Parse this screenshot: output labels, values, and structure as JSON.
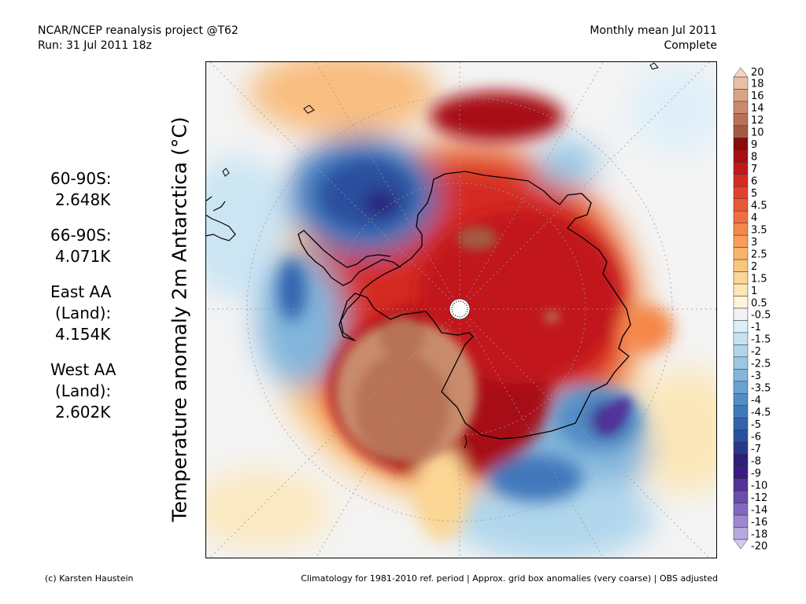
{
  "header": {
    "left_line1": "NCAR/NCEP reanalysis project @T62",
    "left_line2": "Run: 31 Jul 2011 18z",
    "right_line1": "Monthly mean Jul 2011",
    "right_line2": "Complete"
  },
  "map": {
    "ylabel": "Temperature anomaly 2m Antarctica (°C)",
    "projection": "south-polar-stereographic",
    "colors": {
      "ocean_background": "#f4f4f4",
      "coastline": "#000000",
      "grid": "#999999"
    }
  },
  "stats": [
    {
      "label_lines": [
        "60-90S:"
      ],
      "value": "2.648K"
    },
    {
      "label_lines": [
        "66-90S:"
      ],
      "value": "4.071K"
    },
    {
      "label_lines": [
        "East AA",
        "(Land):"
      ],
      "value": "4.154K"
    },
    {
      "label_lines": [
        "West AA",
        "(Land):"
      ],
      "value": "2.602K"
    }
  ],
  "colorbar": {
    "levels": [
      {
        "label": "20",
        "color": "#f5d6c4"
      },
      {
        "label": "18",
        "color": "#e8bfa6"
      },
      {
        "label": "16",
        "color": "#d9a486"
      },
      {
        "label": "14",
        "color": "#c98b6c"
      },
      {
        "label": "12",
        "color": "#b87256"
      },
      {
        "label": "10",
        "color": "#a45a42"
      },
      {
        "label": "9",
        "color": "#8b0a0a"
      },
      {
        "label": "8",
        "color": "#a70f12"
      },
      {
        "label": "7",
        "color": "#c1181b"
      },
      {
        "label": "6",
        "color": "#d52a22"
      },
      {
        "label": "5",
        "color": "#e2402c"
      },
      {
        "label": "4.5",
        "color": "#ea5834"
      },
      {
        "label": "4",
        "color": "#f06e3e"
      },
      {
        "label": "3.5",
        "color": "#f5874a"
      },
      {
        "label": "3",
        "color": "#f89e5a"
      },
      {
        "label": "2.5",
        "color": "#f9b46b"
      },
      {
        "label": "2",
        "color": "#fac67e"
      },
      {
        "label": "1.5",
        "color": "#fbd694"
      },
      {
        "label": "1",
        "color": "#fce6b4"
      },
      {
        "label": "0.5",
        "color": "#fdf4dc"
      },
      {
        "label": "-0.5",
        "color": "#f2f2f2"
      },
      {
        "label": "-1",
        "color": "#dbeefa"
      },
      {
        "label": "-1.5",
        "color": "#c6e3f3"
      },
      {
        "label": "-2",
        "color": "#b0d6ec"
      },
      {
        "label": "-2.5",
        "color": "#99c7e4"
      },
      {
        "label": "-3",
        "color": "#82b6db"
      },
      {
        "label": "-3.5",
        "color": "#6aa2d1"
      },
      {
        "label": "-4",
        "color": "#528dc6"
      },
      {
        "label": "-4.5",
        "color": "#3f78bb"
      },
      {
        "label": "-5",
        "color": "#3363ad"
      },
      {
        "label": "-6",
        "color": "#2a4f9e"
      },
      {
        "label": "-7",
        "color": "#26398c"
      },
      {
        "label": "-8",
        "color": "#2c1e7a"
      },
      {
        "label": "-9",
        "color": "#3b1a86"
      },
      {
        "label": "-10",
        "color": "#53339a"
      },
      {
        "label": "-12",
        "color": "#6a4dad"
      },
      {
        "label": "-14",
        "color": "#8268bf"
      },
      {
        "label": "-16",
        "color": "#9d87d1"
      },
      {
        "label": "-18",
        "color": "#b8a8e0"
      },
      {
        "label": "-20",
        "color": "#d3c9ee"
      }
    ]
  },
  "footer": {
    "left": "(c) Karsten Haustein",
    "right": "Climatology for 1981-2010 ref. period | Approx. grid box anomalies (very coarse) | OBS adjusted"
  }
}
